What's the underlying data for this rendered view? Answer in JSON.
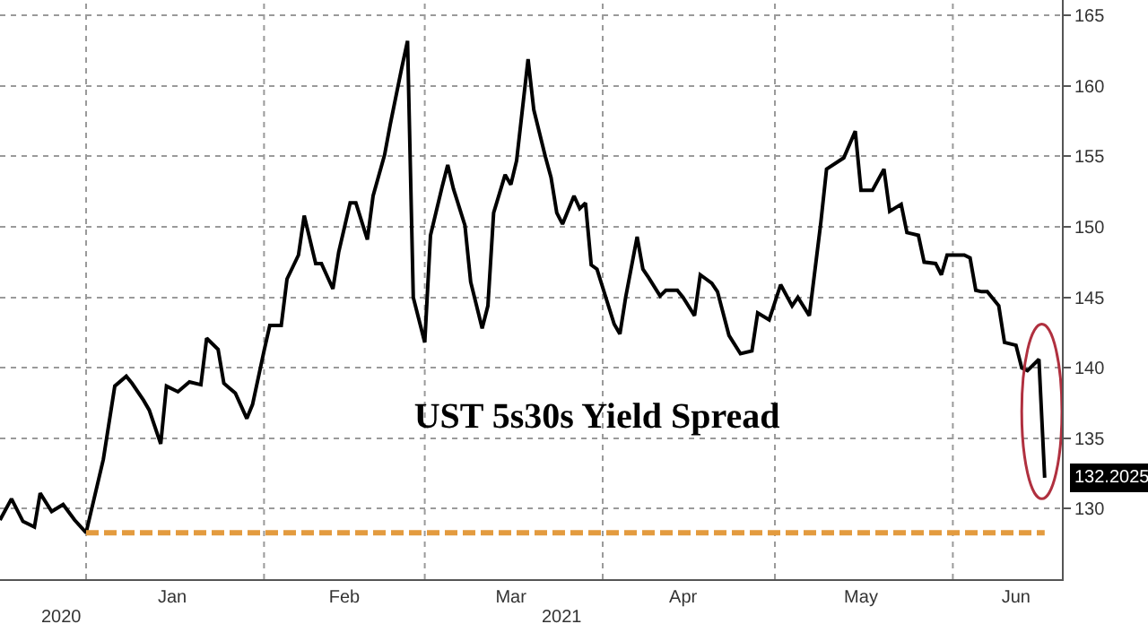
{
  "chart_data": {
    "type": "line",
    "title": "UST 5s30s Yield Spread",
    "annotations": [
      "2020",
      "2021"
    ],
    "series": [
      {
        "color": "#000000",
        "x": [
          "2020-12-17",
          "2020-12-19",
          "2020-12-21",
          "2020-12-23",
          "2020-12-24",
          "2020-12-26",
          "2020-12-28",
          "2020-12-30",
          "2021-01-01",
          "2021-01-04",
          "2021-01-06",
          "2021-01-08",
          "2021-01-09",
          "2021-01-11",
          "2021-01-12",
          "2021-01-14",
          "2021-01-15",
          "2021-01-17",
          "2021-01-19",
          "2021-01-21",
          "2021-01-22",
          "2021-01-24",
          "2021-01-25",
          "2021-01-27",
          "2021-01-29",
          "2021-01-30",
          "2021-02-01",
          "2021-02-02",
          "2021-02-04",
          "2021-02-05",
          "2021-02-07",
          "2021-02-08",
          "2021-02-10",
          "2021-02-11",
          "2021-02-13",
          "2021-02-14",
          "2021-02-16",
          "2021-02-17",
          "2021-02-19",
          "2021-02-20",
          "2021-02-22",
          "2021-02-23",
          "2021-02-25",
          "2021-02-26",
          "2021-02-27",
          "2021-03-01",
          "2021-03-02",
          "2021-03-04",
          "2021-03-05",
          "2021-03-06",
          "2021-03-08",
          "2021-03-09",
          "2021-03-11",
          "2021-03-12",
          "2021-03-13",
          "2021-03-15",
          "2021-03-16",
          "2021-03-17",
          "2021-03-19",
          "2021-03-20",
          "2021-03-22",
          "2021-03-23",
          "2021-03-24",
          "2021-03-25",
          "2021-03-27",
          "2021-03-28",
          "2021-03-29",
          "2021-03-30",
          "2021-03-31",
          "2021-04-03",
          "2021-04-04",
          "2021-04-05",
          "2021-04-07",
          "2021-04-08",
          "2021-04-09",
          "2021-04-11",
          "2021-04-12",
          "2021-04-14",
          "2021-04-15",
          "2021-04-17",
          "2021-04-18",
          "2021-04-20",
          "2021-04-21",
          "2021-04-23",
          "2021-04-25",
          "2021-04-27",
          "2021-04-28",
          "2021-04-30",
          "2021-05-02",
          "2021-05-04",
          "2021-05-05",
          "2021-05-07",
          "2021-05-09",
          "2021-05-10",
          "2021-05-13",
          "2021-05-15",
          "2021-05-16",
          "2021-05-18",
          "2021-05-20",
          "2021-05-21",
          "2021-05-23",
          "2021-05-24",
          "2021-05-26",
          "2021-05-27",
          "2021-05-29",
          "2021-05-30",
          "2021-05-31",
          "2021-06-03",
          "2021-06-04",
          "2021-06-05",
          "2021-06-06",
          "2021-06-07",
          "2021-06-09",
          "2021-06-10",
          "2021-06-12",
          "2021-06-13",
          "2021-06-14",
          "2021-06-16",
          "2021-06-17"
        ],
        "values": [
          129.2,
          130.7,
          129.1,
          128.7,
          131.1,
          129.8,
          130.3,
          129.2,
          128.3,
          133.5,
          138.7,
          139.4,
          138.9,
          137.7,
          137,
          134.6,
          138.7,
          138.3,
          139,
          138.8,
          142.1,
          141.3,
          138.9,
          138.2,
          136.4,
          137.4,
          141.2,
          143,
          143,
          146.3,
          148,
          150.8,
          147.4,
          147.4,
          145.6,
          148.2,
          151.7,
          151.7,
          149.1,
          152.2,
          155.1,
          157.3,
          161.3,
          163.2,
          145,
          141.8,
          149.4,
          152.8,
          154.4,
          152.7,
          150.1,
          146.1,
          142.8,
          144.4,
          151,
          153.7,
          153,
          154.7,
          161.9,
          158.3,
          155,
          153.5,
          151,
          150.2,
          152.2,
          151.3,
          151.7,
          147.3,
          147,
          143.1,
          142.4,
          145,
          149.3,
          147,
          146.4,
          145.1,
          145.5,
          145.5,
          145,
          143.7,
          146.6,
          146,
          145.4,
          142.3,
          141,
          141.2,
          143.9,
          143.4,
          145.9,
          144.4,
          145,
          143.7,
          150.3,
          154.1,
          154.9,
          156.8,
          152.6,
          152.6,
          154.1,
          151.1,
          151.6,
          149.6,
          149.4,
          147.5,
          147.4,
          146.6,
          148,
          148,
          147.8,
          145.5,
          145.4,
          145.4,
          144.4,
          141.8,
          141.6,
          140,
          139.8,
          140.6,
          132.2025
        ],
        "value_labels": [
          null,
          null,
          null,
          null,
          null,
          null,
          null,
          null,
          null,
          null,
          null,
          null,
          null,
          null,
          null,
          null,
          null,
          null,
          null,
          null,
          null,
          null,
          null,
          null,
          null,
          null,
          null,
          null,
          null,
          null,
          null,
          null,
          null,
          null,
          null,
          null,
          null,
          null,
          null,
          null,
          null,
          null,
          null,
          null,
          null,
          null,
          null,
          null,
          null,
          null,
          null,
          null,
          null,
          null,
          null,
          null,
          null,
          null,
          null,
          null,
          null,
          null,
          null,
          null,
          null,
          null,
          null,
          null,
          null,
          null,
          null,
          null,
          null,
          null,
          null,
          null,
          null,
          null,
          null,
          null,
          null,
          null,
          null,
          null,
          null,
          null,
          null,
          null,
          null,
          null,
          null,
          null,
          null,
          null,
          null,
          null,
          null,
          null,
          null,
          null,
          null,
          null,
          null,
          null,
          null,
          null,
          null,
          null,
          null,
          null,
          null,
          null,
          null,
          null,
          null,
          null,
          null,
          null,
          "132.2025"
        ]
      },
      {
        "color": "#e39b3f",
        "line_style": "dashed",
        "x": [
          "2021-01-01",
          "2021-06-17"
        ],
        "values": [
          128.3,
          128.3
        ]
      }
    ],
    "xlim": [
      "2020-12-17",
      "2021-06-20"
    ],
    "xticks": [
      {
        "value": "2021-01-01",
        "label": null
      },
      {
        "value": "2021-01-16",
        "label": "Jan"
      },
      {
        "value": "2021-02-01",
        "label": null
      },
      {
        "value": "2021-02-15",
        "label": "Feb"
      },
      {
        "value": "2021-03-01",
        "label": null
      },
      {
        "value": "2021-03-16",
        "label": "Mar"
      },
      {
        "value": "2021-04-01",
        "label": null
      },
      {
        "value": "2021-04-15",
        "label": "Apr"
      },
      {
        "value": "2021-05-01",
        "label": null
      },
      {
        "value": "2021-05-16",
        "label": "May"
      },
      {
        "value": "2021-06-01",
        "label": null
      },
      {
        "value": "2021-06-12",
        "label": "Jun"
      }
    ],
    "ylim": [
      125,
      166.1
    ],
    "yticks": [
      130,
      135,
      140,
      145,
      150,
      155,
      160,
      165
    ],
    "grid": true,
    "marker": "none",
    "line_style": "solid"
  }
}
